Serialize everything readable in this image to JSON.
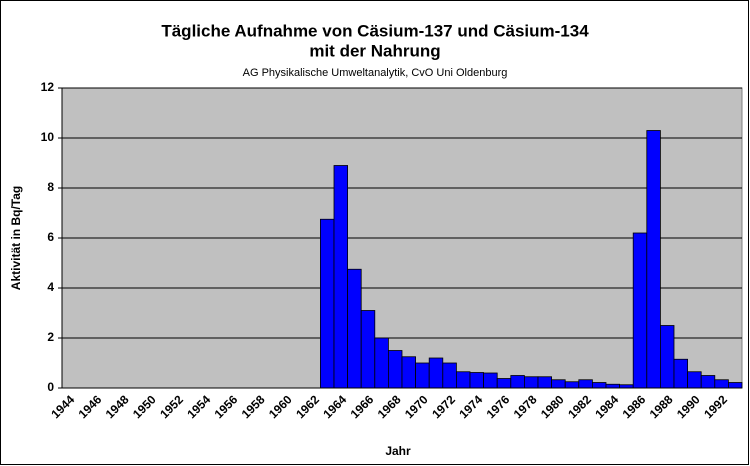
{
  "chart_data": {
    "type": "bar",
    "title": [
      "Tägliche Aufnahme von Cäsium-137 und Cäsium-134",
      "mit der Nahrung"
    ],
    "subtitle": "AG Physikalische Umweltanalytik, CvO Uni Oldenburg",
    "x_label": "Jahr",
    "y_label": "Aktivität in Bq/Tag",
    "categories": [
      "1944",
      null,
      "1946",
      null,
      "1948",
      null,
      "1950",
      null,
      "1952",
      null,
      "1954",
      null,
      "1956",
      null,
      "1958",
      null,
      "1960",
      null,
      "1962",
      null,
      "1964",
      null,
      "1966",
      null,
      "1968",
      null,
      "1970",
      null,
      "1972",
      null,
      "1974",
      null,
      "1976",
      null,
      "1978",
      null,
      "1980",
      null,
      "1982",
      null,
      "1984",
      null,
      "1986",
      null,
      "1988",
      null,
      "1990",
      null,
      "1992",
      null
    ],
    "values": [
      0,
      0,
      0,
      0,
      0,
      0,
      0,
      0,
      0,
      0,
      0,
      0,
      0,
      0,
      0,
      0,
      0,
      0,
      0,
      6.75,
      8.9,
      4.75,
      3.1,
      2.0,
      1.5,
      1.25,
      1.0,
      1.2,
      1.0,
      0.65,
      0.62,
      0.6,
      0.38,
      0.5,
      0.45,
      0.45,
      0.33,
      0.25,
      0.33,
      0.22,
      0.15,
      0.13,
      6.2,
      10.3,
      2.5,
      1.15,
      0.65,
      0.5,
      0.33,
      0.22
    ],
    "color": "#0000ff",
    "ylim": [
      0,
      12
    ],
    "yticks": [
      0,
      2,
      4,
      6,
      8,
      10,
      12
    ],
    "grid": true
  }
}
